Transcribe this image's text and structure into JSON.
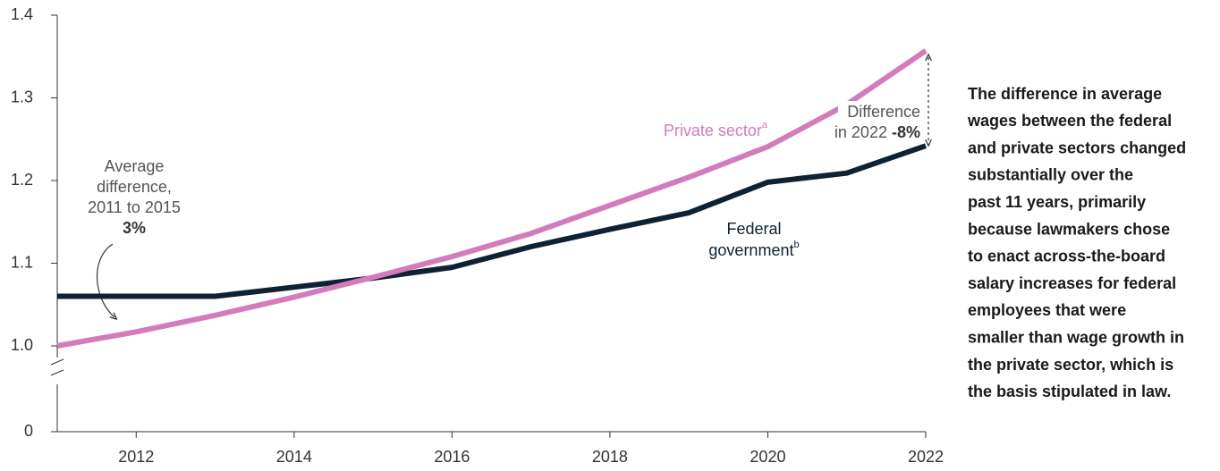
{
  "chart_data": {
    "type": "line",
    "x": [
      2011,
      2012,
      2013,
      2014,
      2015,
      2016,
      2017,
      2018,
      2019,
      2020,
      2021,
      2022
    ],
    "xlim": [
      2011,
      2022
    ],
    "xticks": [
      2012,
      2014,
      2016,
      2018,
      2020,
      2022
    ],
    "ylim": [
      0,
      1.4
    ],
    "axis_break": [
      0,
      1
    ],
    "yticks": [
      0,
      {
        "value": 1,
        "label": "1.0"
      },
      1.1,
      1.2,
      1.3,
      1.4
    ],
    "series": [
      {
        "name": "Private sector",
        "note": "a",
        "color": "#d37bbb",
        "values": [
          1.0,
          1.017,
          1.037,
          1.059,
          1.083,
          1.108,
          1.136,
          1.17,
          1.204,
          1.241,
          1.292,
          1.357
        ]
      },
      {
        "name": "Federal government",
        "note": "b",
        "color": "#0f2233",
        "values": [
          1.06,
          1.06,
          1.06,
          1.071,
          1.082,
          1.095,
          1.12,
          1.141,
          1.161,
          1.198,
          1.209,
          1.242
        ]
      }
    ],
    "annotations": [
      {
        "lines": [
          "Average",
          "difference,",
          "2011 to 2015"
        ],
        "value": "3%"
      },
      {
        "lines": [
          "Difference",
          "in 2022"
        ],
        "value": "-8%"
      }
    ],
    "side_note": [
      "The difference in average",
      "wages between the federal",
      "and private sectors changed",
      "substantially over the",
      "past 11 years, primarily",
      "because lawmakers chose",
      "to enact across-the-board",
      "salary increases for federal",
      "employees that were",
      "smaller than wage growth in",
      "the private sector, which is",
      "the basis stipulated in law."
    ]
  }
}
